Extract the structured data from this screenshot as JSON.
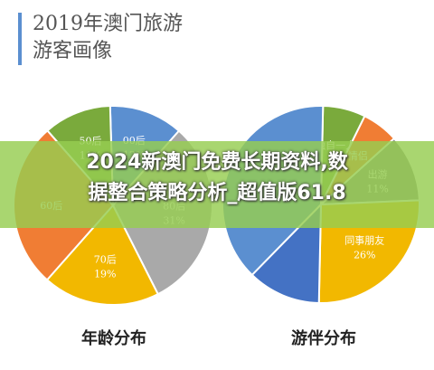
{
  "title_line1": "2019年澳门旅游",
  "title_line2": "游客画像",
  "banner_line1": "2024新澳门免费长期资料,数",
  "banner_line2": "据整合策略分析_超值版61.8",
  "chart_data": [
    {
      "type": "pie",
      "title": "年龄分布",
      "slices": [
        {
          "label": "00后",
          "value": 12,
          "pct": "12%",
          "color": "#5b8fd0"
        },
        {
          "label": "80后",
          "value": 31,
          "pct": "31%",
          "color": "#a9a9a9"
        },
        {
          "label": "70后",
          "value": 19,
          "pct": "19%",
          "color": "#f2b800"
        },
        {
          "label": "60后",
          "value": 27,
          "pct": "",
          "color": "#f07d34"
        },
        {
          "label": "50后",
          "value": 11,
          "pct": "11%",
          "color": "#7aaa3c"
        }
      ]
    },
    {
      "type": "pie",
      "title": "游伴分布",
      "slices": [
        {
          "label": "独自一人",
          "value": 7,
          "pct": "",
          "color": "#7aaa3c"
        },
        {
          "label": "情侣",
          "value": 6,
          "pct": "",
          "color": "#f07d34"
        },
        {
          "label": "出游",
          "value": 11,
          "pct": "11%",
          "color": "#8a8a8a"
        },
        {
          "label": "同事朋友",
          "value": 26,
          "pct": "26%",
          "color": "#f2b800"
        },
        {
          "label": "",
          "value": 12,
          "pct": "",
          "color": "#4472c4"
        },
        {
          "label": "",
          "value": 38,
          "pct": "",
          "color": "#5b8fd0"
        }
      ]
    }
  ]
}
